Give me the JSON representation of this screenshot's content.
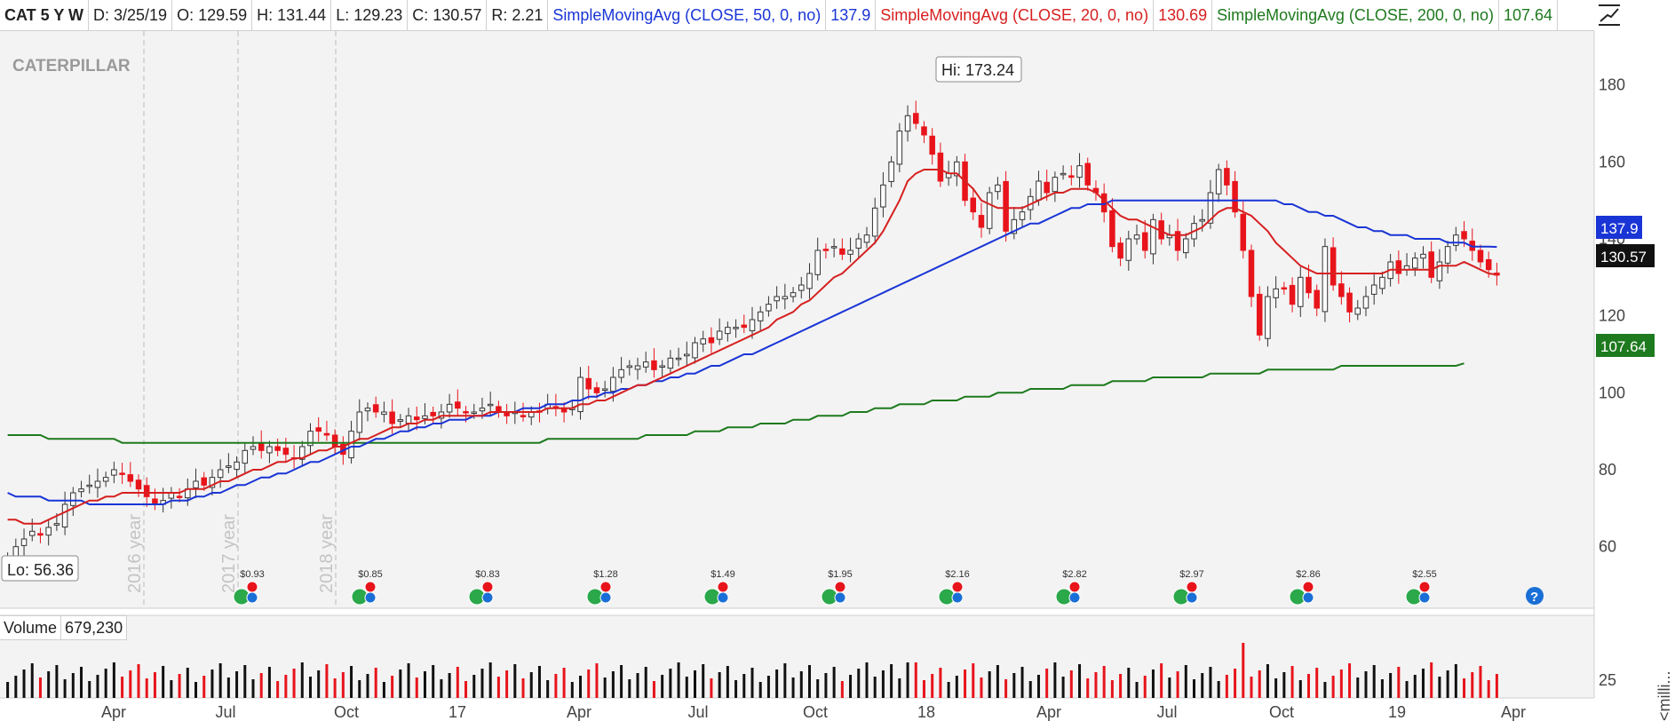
{
  "header": {
    "symbol": "CAT 5 Y W",
    "date": "D: 3/25/19",
    "open": "O: 129.59",
    "high": "H: 131.44",
    "low": "L: 129.23",
    "close": "C: 130.57",
    "range": "R: 2.21",
    "sma50_label": "SimpleMovingAvg (CLOSE, 50, 0, no)",
    "sma50_value": "137.9",
    "sma20_label": "SimpleMovingAvg (CLOSE, 20, 0, no)",
    "sma20_value": "130.69",
    "sma200_label": "SimpleMovingAvg (CLOSE, 200, 0, no)",
    "sma200_value": "107.64"
  },
  "logo": "CATERPILLAR",
  "annotations": {
    "hi": "Hi: 173.24",
    "lo": "Lo: 56.36",
    "year_labels": [
      "2016 year",
      "2017 year",
      "2018 year"
    ]
  },
  "price_badges": {
    "sma50": "137.9",
    "close": "130.57",
    "sma200": "107.64"
  },
  "volume": {
    "label": "Volume",
    "value": "679,230",
    "axis_tick": "25",
    "axis_unit": "<milli..."
  },
  "dividends": [
    "$0.93",
    "$0.85",
    "$0.83",
    "$1.28",
    "$1.49",
    "$1.95",
    "$2.16",
    "$2.82",
    "$2.97",
    "$2.86",
    "$2.55"
  ],
  "help_icon": "?",
  "colors": {
    "up": "#ffffff",
    "down": "#e8141b",
    "sma50": "#1a35d6",
    "sma20": "#d62020",
    "sma200": "#1e7a1e",
    "badge_dark": "#111111"
  },
  "chart_data": {
    "type": "candlestick",
    "y_ticks": [
      60,
      80,
      100,
      120,
      140,
      160,
      180
    ],
    "ylim": [
      44,
      194
    ],
    "x_ticks": [
      "Apr",
      "Jul",
      "Oct",
      "17",
      "Apr",
      "Jul",
      "Oct",
      "18",
      "Apr",
      "Jul",
      "Oct",
      "19",
      "Apr"
    ],
    "closes": [
      57,
      60,
      62,
      64,
      63,
      65,
      66,
      71,
      74,
      75,
      76,
      77,
      78,
      80,
      79,
      77,
      75,
      73,
      71,
      72,
      74,
      73,
      75,
      77,
      76,
      78,
      80,
      81,
      82,
      85,
      86,
      85,
      86,
      85,
      84,
      83,
      86,
      90,
      90,
      89,
      86,
      84,
      90,
      95,
      96,
      95,
      95,
      92,
      93,
      94,
      93,
      94,
      94,
      95,
      97,
      96,
      95,
      95,
      96,
      97,
      95,
      94,
      95,
      94,
      95,
      95,
      97,
      96,
      95,
      96,
      104,
      101,
      100,
      101,
      104,
      106,
      107,
      107,
      108,
      106,
      107,
      109,
      109,
      110,
      113,
      114,
      113,
      116,
      117,
      117,
      117,
      119,
      121,
      123,
      125,
      125,
      126,
      128,
      131,
      137,
      137,
      138,
      136,
      137,
      140,
      141,
      148,
      154,
      160,
      168,
      172,
      170,
      167,
      162,
      155,
      157,
      160,
      150,
      147,
      143,
      152,
      154,
      142,
      145,
      147,
      151,
      155,
      152,
      156,
      157,
      156,
      159,
      154,
      152,
      147,
      138,
      135,
      140,
      141,
      137,
      145,
      140,
      141,
      137,
      140,
      144,
      145,
      152,
      158,
      154,
      147,
      137,
      125,
      115,
      125,
      127,
      127,
      123,
      130,
      126,
      122,
      138,
      128,
      125,
      121,
      122,
      125,
      128,
      130,
      134,
      131,
      133,
      135,
      136,
      130,
      134,
      138,
      141,
      140,
      137,
      134,
      132,
      130.57
    ],
    "sma20": [
      67,
      67,
      66,
      66,
      66,
      67,
      68,
      69,
      70,
      71,
      72,
      72,
      73,
      73,
      74,
      74,
      74,
      74,
      74,
      74,
      74,
      74,
      75,
      75,
      75,
      76,
      77,
      77,
      78,
      79,
      80,
      80,
      81,
      82,
      82,
      83,
      83,
      84,
      85,
      85,
      86,
      86,
      87,
      88,
      88,
      89,
      90,
      91,
      91,
      92,
      92,
      93,
      93,
      94,
      94,
      94,
      94,
      94,
      94,
      95,
      95,
      95,
      95,
      95,
      95,
      95,
      96,
      96,
      96,
      96,
      97,
      97,
      98,
      98,
      99,
      100,
      101,
      102,
      102,
      103,
      104,
      105,
      106,
      107,
      108,
      109,
      110,
      111,
      112,
      113,
      114,
      115,
      116,
      117,
      119,
      120,
      121,
      123,
      124,
      126,
      128,
      130,
      131,
      133,
      135,
      137,
      139,
      142,
      146,
      150,
      155,
      157,
      158,
      158,
      158,
      157,
      157,
      155,
      153,
      150,
      149,
      148,
      148,
      148,
      148,
      149,
      150,
      151,
      152,
      152,
      153,
      153,
      153,
      152,
      150,
      148,
      146,
      145,
      145,
      144,
      143,
      142,
      141,
      141,
      141,
      142,
      143,
      145,
      147,
      148,
      148,
      147,
      146,
      144,
      142,
      139,
      137,
      135,
      133,
      132,
      131,
      131,
      131,
      131,
      131,
      131,
      131,
      131,
      131,
      132,
      132,
      132,
      132,
      132,
      132,
      133,
      133,
      133,
      134,
      133,
      132,
      131,
      130.69
    ],
    "sma50": [
      74,
      73,
      73,
      73,
      73,
      72,
      72,
      72,
      72,
      72,
      71,
      71,
      71,
      71,
      71,
      71,
      71,
      71,
      71,
      71,
      72,
      72,
      72,
      73,
      73,
      74,
      74,
      75,
      76,
      76,
      77,
      78,
      78,
      79,
      79,
      80,
      81,
      82,
      82,
      83,
      84,
      85,
      86,
      86,
      87,
      88,
      88,
      89,
      90,
      90,
      91,
      91,
      92,
      92,
      93,
      93,
      93,
      94,
      94,
      94,
      95,
      95,
      95,
      96,
      96,
      96,
      97,
      97,
      97,
      98,
      98,
      99,
      99,
      100,
      100,
      101,
      101,
      102,
      102,
      103,
      103,
      104,
      104,
      105,
      105,
      106,
      107,
      107,
      108,
      109,
      110,
      110,
      111,
      112,
      113,
      114,
      115,
      116,
      117,
      118,
      119,
      120,
      121,
      122,
      123,
      124,
      125,
      126,
      127,
      128,
      129,
      130,
      131,
      132,
      133,
      134,
      135,
      136,
      137,
      138,
      139,
      140,
      141,
      142,
      143,
      144,
      144,
      145,
      146,
      147,
      148,
      148,
      149,
      149,
      149,
      150,
      150,
      150,
      150,
      150,
      150,
      150,
      150,
      150,
      150,
      150,
      150,
      150,
      150,
      150,
      150,
      150,
      150,
      150,
      150,
      150,
      149,
      149,
      148,
      147,
      147,
      146,
      146,
      145,
      144,
      143,
      143,
      142,
      142,
      141,
      141,
      141,
      140,
      140,
      140,
      140,
      139,
      139,
      139,
      138,
      138,
      138,
      137.9
    ],
    "sma200": [
      89,
      89,
      89,
      89,
      89,
      88,
      88,
      88,
      88,
      88,
      88,
      88,
      88,
      88,
      87,
      87,
      87,
      87,
      87,
      87,
      87,
      87,
      87,
      87,
      87,
      87,
      87,
      87,
      87,
      87,
      87,
      87,
      87,
      87,
      87,
      87,
      87,
      87,
      87,
      87,
      87,
      87,
      87,
      87,
      87,
      87,
      87,
      87,
      87,
      87,
      87,
      87,
      87,
      87,
      87,
      87,
      87,
      87,
      87,
      87,
      87,
      87,
      87,
      87,
      87,
      87,
      88,
      88,
      88,
      88,
      88,
      88,
      88,
      88,
      88,
      88,
      88,
      88,
      89,
      89,
      89,
      89,
      89,
      89,
      90,
      90,
      90,
      90,
      91,
      91,
      91,
      91,
      92,
      92,
      92,
      92,
      93,
      93,
      93,
      94,
      94,
      94,
      94,
      95,
      95,
      95,
      96,
      96,
      96,
      97,
      97,
      97,
      97,
      98,
      98,
      98,
      98,
      99,
      99,
      99,
      99,
      100,
      100,
      100,
      100,
      101,
      101,
      101,
      101,
      101,
      102,
      102,
      102,
      102,
      102,
      103,
      103,
      103,
      103,
      103,
      104,
      104,
      104,
      104,
      104,
      104,
      104,
      105,
      105,
      105,
      105,
      105,
      105,
      105,
      106,
      106,
      106,
      106,
      106,
      106,
      106,
      106,
      106,
      107,
      107,
      107,
      107,
      107,
      107,
      107,
      107,
      107,
      107,
      107,
      107,
      107,
      107,
      107,
      107.64
    ],
    "volume_ticks": [
      25
    ]
  }
}
